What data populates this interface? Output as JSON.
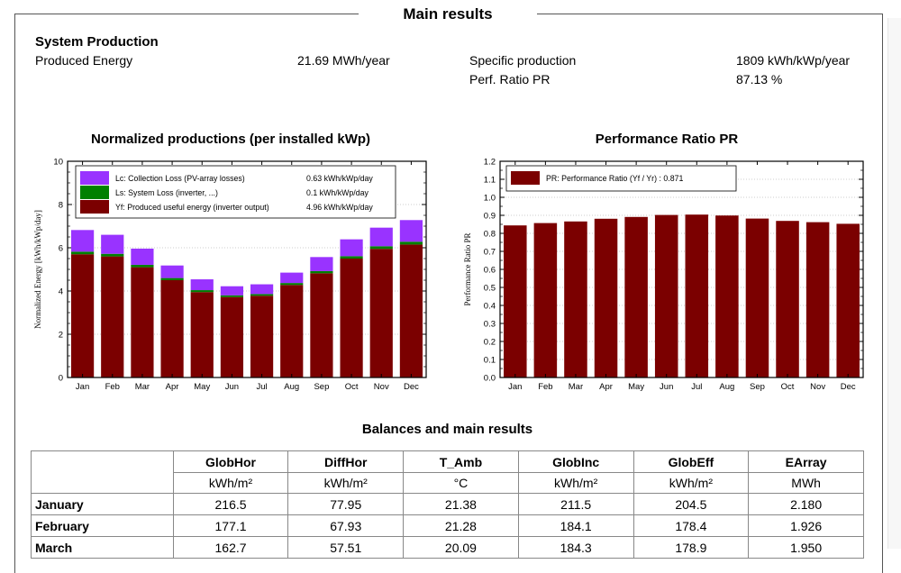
{
  "page": {
    "title": "Main results",
    "system_production": {
      "heading": "System Production",
      "produced_energy_label": "Produced Energy",
      "produced_energy_value": "21.69 MWh/year",
      "specific_production_label": "Specific production",
      "specific_production_value": "1809 kWh/kWp/year",
      "perf_ratio_label": "Perf. Ratio PR",
      "perf_ratio_value": "87.13 %"
    },
    "balances_title": "Balances and main results"
  },
  "chart_data": [
    {
      "type": "bar",
      "stacked": true,
      "title": "Normalized productions (per installed kWp)",
      "ylabel": "Normalized Energy [kWh/kWp/day]",
      "xlabel": "",
      "ylim": [
        0,
        10
      ],
      "yticks": [
        "0",
        "2",
        "4",
        "6",
        "8",
        "10"
      ],
      "categories": [
        "Jan",
        "Feb",
        "Mar",
        "Apr",
        "May",
        "Jun",
        "Jul",
        "Aug",
        "Sep",
        "Oct",
        "Nov",
        "Dec"
      ],
      "series": [
        {
          "name": "Yf: Produced useful energy  (inverter output)",
          "annual_value": "4.96 kWh/kWp/day",
          "color": "#7b0000",
          "values": [
            5.7,
            5.6,
            5.1,
            4.5,
            3.95,
            3.72,
            3.78,
            4.28,
            4.82,
            5.5,
            5.95,
            6.15
          ]
        },
        {
          "name": "Ls: System Loss  (inverter, ...)",
          "annual_value": "0.1 kWh/kWp/day",
          "color": "#008000",
          "values": [
            0.12,
            0.12,
            0.11,
            0.1,
            0.09,
            0.08,
            0.08,
            0.09,
            0.1,
            0.11,
            0.12,
            0.13
          ]
        },
        {
          "name": "Lc: Collection Loss (PV-array losses)",
          "annual_value": "0.63 kWh/kWp/day",
          "color": "#9933ff",
          "values": [
            1.0,
            0.88,
            0.75,
            0.58,
            0.5,
            0.42,
            0.45,
            0.48,
            0.65,
            0.78,
            0.86,
            1.0
          ]
        }
      ]
    },
    {
      "type": "bar",
      "title": "Performance Ratio PR",
      "ylabel": "Performance Ratio PR",
      "xlabel": "",
      "ylim": [
        0,
        1.2
      ],
      "yticks": [
        "0.0",
        "0.1",
        "0.2",
        "0.3",
        "0.4",
        "0.5",
        "0.6",
        "0.7",
        "0.8",
        "0.9",
        "1.0",
        "1.1",
        "1.2"
      ],
      "categories": [
        "Jan",
        "Feb",
        "Mar",
        "Apr",
        "May",
        "Jun",
        "Jul",
        "Aug",
        "Sep",
        "Oct",
        "Nov",
        "Dec"
      ],
      "series": [
        {
          "name": "PR: Performance Ratio (Yf / Yr) :  0.871",
          "color": "#7b0000",
          "values": [
            0.844,
            0.857,
            0.866,
            0.881,
            0.891,
            0.902,
            0.904,
            0.899,
            0.882,
            0.869,
            0.862,
            0.853
          ]
        }
      ]
    }
  ],
  "table": {
    "headers": [
      "",
      "GlobHor",
      "DiffHor",
      "T_Amb",
      "GlobInc",
      "GlobEff",
      "EArray"
    ],
    "units": [
      "",
      "kWh/m²",
      "kWh/m²",
      "°C",
      "kWh/m²",
      "kWh/m²",
      "MWh"
    ],
    "rows": [
      [
        "January",
        "216.5",
        "77.95",
        "21.38",
        "211.5",
        "204.5",
        "2.180"
      ],
      [
        "February",
        "177.1",
        "67.93",
        "21.28",
        "184.1",
        "178.4",
        "1.926"
      ],
      [
        "March",
        "162.7",
        "57.51",
        "20.09",
        "184.3",
        "178.9",
        "1.950"
      ]
    ]
  }
}
